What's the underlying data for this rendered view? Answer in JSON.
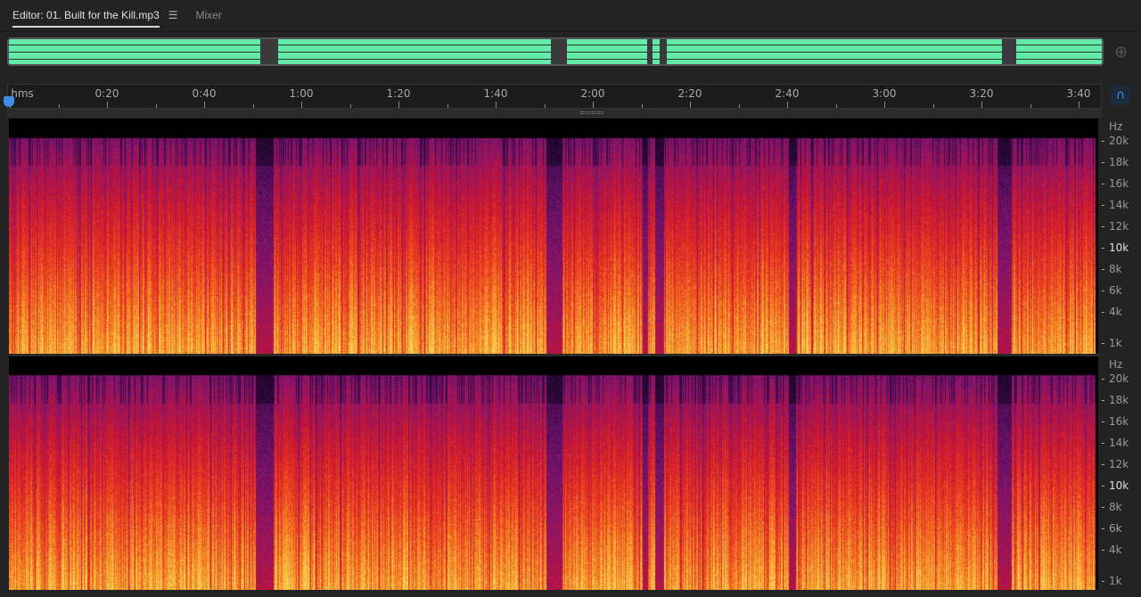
{
  "tabs": {
    "editor": "Editor: 01. Built for the Kill.mp3",
    "menu_icon": "hamburger-icon",
    "mixer": "Mixer"
  },
  "ruler": {
    "unit": "hms",
    "labels": [
      "0:20",
      "0:40",
      "1:00",
      "1:20",
      "1:40",
      "2:00",
      "2:20",
      "2:40",
      "3:00",
      "3:20",
      "3:40"
    ]
  },
  "freq_axis": {
    "unit": "Hz",
    "labels": [
      "20k",
      "18k",
      "16k",
      "14k",
      "12k",
      "10k",
      "8k",
      "6k",
      "4k",
      "1k"
    ]
  },
  "colors": {
    "waveform": "#63eaa9",
    "playhead": "#3b8de8"
  }
}
